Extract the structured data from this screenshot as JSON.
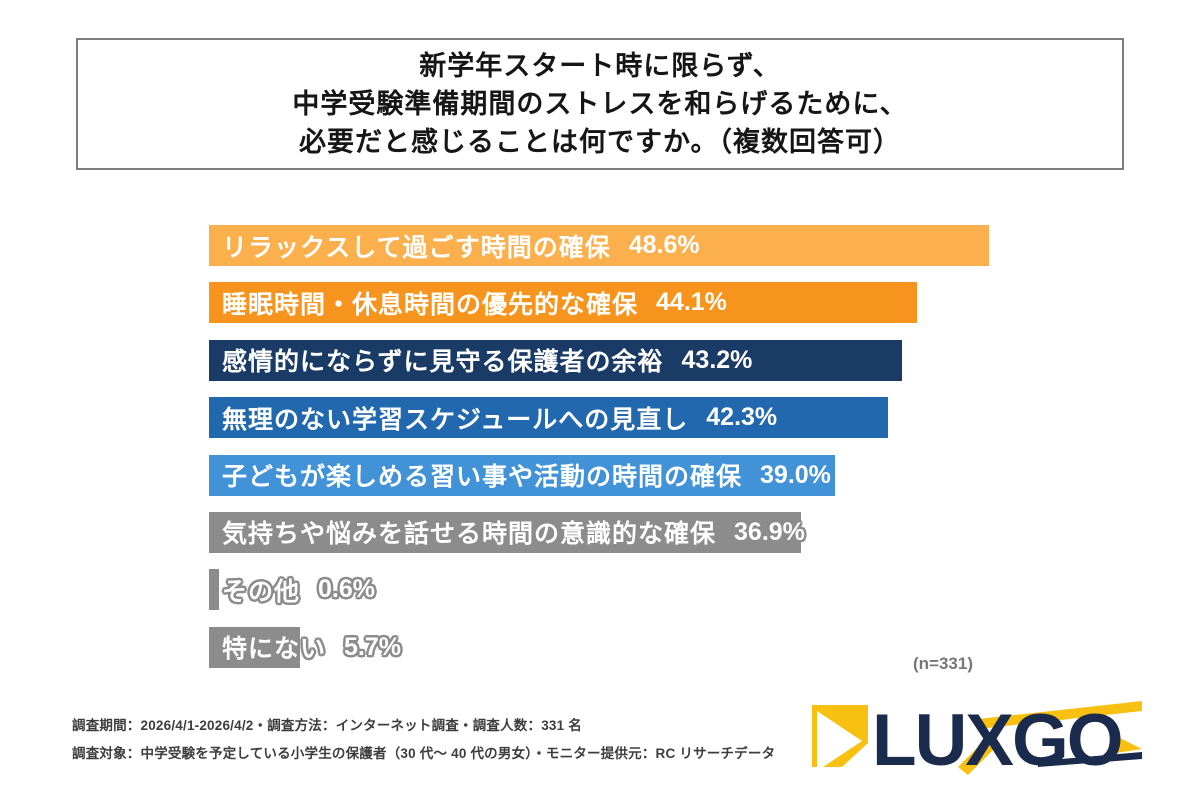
{
  "title": {
    "line1": "新学年スタート時に限らず、",
    "line2": "中学受験準備期間のストレスを和らげるために、",
    "line3": "必要だと感じることは何ですか。（複数回答可）"
  },
  "chart_data": {
    "type": "bar",
    "orientation": "horizontal",
    "title": "新学年スタート時に限らず、中学受験準備期間のストレスを和らげるために、必要だと感じることは何ですか。（複数回答可）",
    "categories": [
      "リラックスして過ごす時間の確保",
      "睡眠時間・休息時間の優先的な確保",
      "感情的にならずに見守る保護者の余裕",
      "無理のない学習スケジュールへの見直し",
      "子どもが楽しめる習い事や活動の時間の確保",
      "気持ちや悩みを話せる時間の意識的な確保",
      "その他",
      "特にない"
    ],
    "values": [
      48.6,
      44.1,
      43.2,
      42.3,
      39.0,
      36.9,
      0.6,
      5.7
    ],
    "value_labels": [
      "48.6%",
      "44.1%",
      "43.2%",
      "42.3%",
      "39.0%",
      "36.9%",
      "0.6%",
      "5.7%"
    ],
    "bar_colors": [
      "#FBB04D",
      "#F7941D",
      "#1A3B66",
      "#2268AE",
      "#4292D8",
      "#8C8C8C",
      "#8C8C8C",
      "#8C8C8C"
    ],
    "unit": "%",
    "xlim": [
      0,
      50
    ],
    "grid": false,
    "label_style": "white fill with bar-color outline, overflowing bar end when bar is short",
    "sample_note": "(n=331)"
  },
  "footer": {
    "line1": "調査期間：2026/4/1-2026/4/2・調査方法：インターネット調査・調査人数：331 名",
    "line2": "調査対象：中学受験を予定している小学生の保護者（30 代〜 40 代の男女）・モニター提供元：RC リサーチデータ"
  },
  "logo": {
    "text": "LUXGO",
    "navy": "#1B2B4D",
    "yellow": "#F8C112"
  }
}
